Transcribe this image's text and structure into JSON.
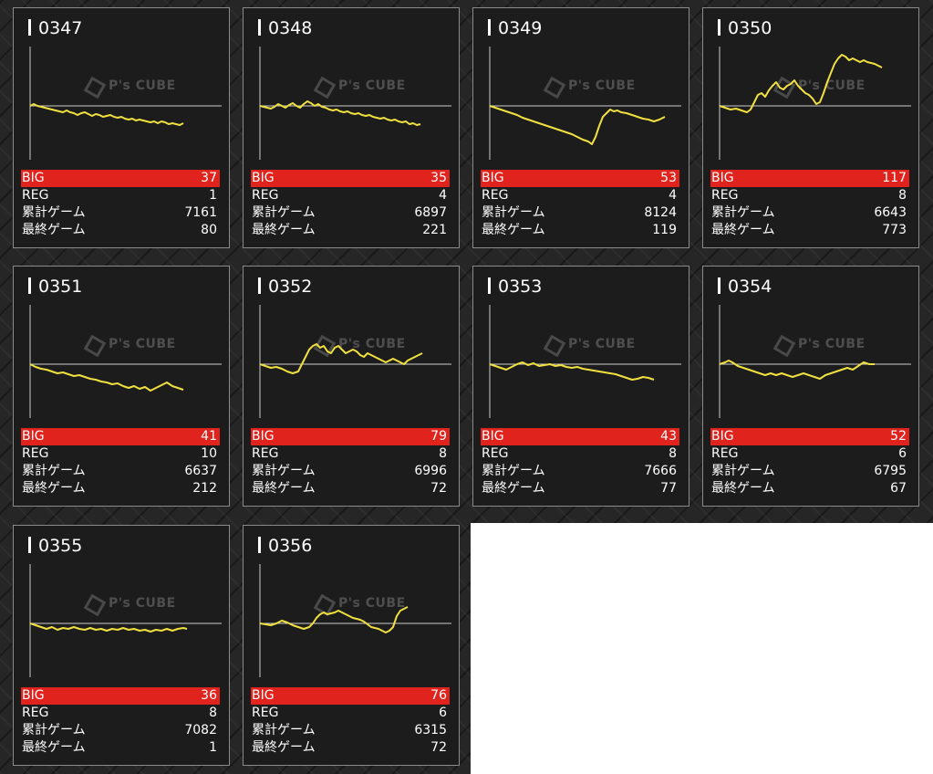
{
  "labels": {
    "big": "BIG",
    "reg": "REG",
    "total": "累計ゲーム",
    "last": "最終ゲーム"
  },
  "logo": {
    "text": "P's CUBE"
  },
  "colors": {
    "big_bar": "#e0231d",
    "line": "#f0e040",
    "card": "#1c1c1c"
  },
  "machines": [
    {
      "id": "0347",
      "big": "37",
      "reg": "1",
      "total": "7161",
      "last": "80",
      "points": [
        [
          0,
          0
        ],
        [
          4,
          -2
        ],
        [
          8,
          0
        ],
        [
          12,
          1
        ],
        [
          16,
          2
        ],
        [
          20,
          3
        ],
        [
          24,
          4
        ],
        [
          28,
          5
        ],
        [
          32,
          6
        ],
        [
          36,
          7
        ],
        [
          40,
          5
        ],
        [
          44,
          7
        ],
        [
          48,
          8
        ],
        [
          52,
          10
        ],
        [
          56,
          8
        ],
        [
          60,
          7
        ],
        [
          64,
          9
        ],
        [
          68,
          11
        ],
        [
          72,
          9
        ],
        [
          76,
          10
        ],
        [
          80,
          12
        ],
        [
          84,
          11
        ],
        [
          88,
          10
        ],
        [
          92,
          12
        ],
        [
          96,
          13
        ],
        [
          100,
          12
        ],
        [
          104,
          14
        ],
        [
          108,
          15
        ],
        [
          112,
          14
        ],
        [
          116,
          16
        ],
        [
          120,
          15
        ],
        [
          124,
          16
        ],
        [
          128,
          17
        ],
        [
          132,
          18
        ],
        [
          136,
          17
        ],
        [
          140,
          19
        ],
        [
          144,
          17
        ],
        [
          148,
          18
        ],
        [
          152,
          20
        ],
        [
          156,
          19
        ],
        [
          160,
          20
        ],
        [
          164,
          21
        ],
        [
          168,
          19
        ]
      ]
    },
    {
      "id": "0348",
      "big": "35",
      "reg": "4",
      "total": "6897",
      "last": "221",
      "points": [
        [
          0,
          0
        ],
        [
          4,
          1
        ],
        [
          8,
          2
        ],
        [
          12,
          3
        ],
        [
          16,
          1
        ],
        [
          20,
          -2
        ],
        [
          24,
          0
        ],
        [
          28,
          2
        ],
        [
          32,
          -1
        ],
        [
          36,
          -3
        ],
        [
          40,
          0
        ],
        [
          44,
          2
        ],
        [
          48,
          -2
        ],
        [
          52,
          -5
        ],
        [
          56,
          -3
        ],
        [
          60,
          0
        ],
        [
          64,
          -2
        ],
        [
          68,
          1
        ],
        [
          72,
          2
        ],
        [
          76,
          4
        ],
        [
          80,
          5
        ],
        [
          84,
          4
        ],
        [
          88,
          6
        ],
        [
          92,
          7
        ],
        [
          96,
          6
        ],
        [
          100,
          8
        ],
        [
          104,
          9
        ],
        [
          108,
          8
        ],
        [
          112,
          10
        ],
        [
          116,
          11
        ],
        [
          120,
          10
        ],
        [
          124,
          12
        ],
        [
          128,
          13
        ],
        [
          132,
          14
        ],
        [
          136,
          13
        ],
        [
          140,
          15
        ],
        [
          144,
          16
        ],
        [
          148,
          15
        ],
        [
          152,
          17
        ],
        [
          156,
          18
        ],
        [
          160,
          17
        ],
        [
          164,
          20
        ],
        [
          168,
          19
        ],
        [
          172,
          21
        ],
        [
          176,
          20
        ]
      ]
    },
    {
      "id": "0349",
      "big": "53",
      "reg": "4",
      "total": "8124",
      "last": "119",
      "points": [
        [
          0,
          0
        ],
        [
          6,
          2
        ],
        [
          12,
          4
        ],
        [
          18,
          6
        ],
        [
          24,
          8
        ],
        [
          30,
          10
        ],
        [
          36,
          13
        ],
        [
          42,
          15
        ],
        [
          48,
          17
        ],
        [
          54,
          19
        ],
        [
          60,
          21
        ],
        [
          66,
          23
        ],
        [
          72,
          25
        ],
        [
          78,
          27
        ],
        [
          84,
          29
        ],
        [
          90,
          31
        ],
        [
          96,
          34
        ],
        [
          102,
          37
        ],
        [
          108,
          39
        ],
        [
          112,
          42
        ],
        [
          116,
          34
        ],
        [
          120,
          22
        ],
        [
          124,
          12
        ],
        [
          128,
          8
        ],
        [
          132,
          4
        ],
        [
          136,
          6
        ],
        [
          140,
          5
        ],
        [
          144,
          7
        ],
        [
          150,
          8
        ],
        [
          156,
          10
        ],
        [
          162,
          12
        ],
        [
          168,
          14
        ],
        [
          174,
          15
        ],
        [
          180,
          17
        ],
        [
          186,
          15
        ],
        [
          192,
          12
        ]
      ]
    },
    {
      "id": "0350",
      "big": "117",
      "reg": "8",
      "total": "6643",
      "last": "773",
      "points": [
        [
          0,
          0
        ],
        [
          6,
          2
        ],
        [
          12,
          4
        ],
        [
          18,
          3
        ],
        [
          24,
          5
        ],
        [
          30,
          7
        ],
        [
          34,
          4
        ],
        [
          38,
          -4
        ],
        [
          42,
          -12
        ],
        [
          46,
          -14
        ],
        [
          50,
          -10
        ],
        [
          54,
          -17
        ],
        [
          58,
          -22
        ],
        [
          62,
          -26
        ],
        [
          66,
          -20
        ],
        [
          70,
          -18
        ],
        [
          74,
          -22
        ],
        [
          78,
          -24
        ],
        [
          82,
          -28
        ],
        [
          86,
          -22
        ],
        [
          90,
          -18
        ],
        [
          94,
          -14
        ],
        [
          98,
          -12
        ],
        [
          102,
          -8
        ],
        [
          106,
          -2
        ],
        [
          110,
          -4
        ],
        [
          114,
          -14
        ],
        [
          118,
          -26
        ],
        [
          122,
          -36
        ],
        [
          126,
          -46
        ],
        [
          130,
          -52
        ],
        [
          134,
          -56
        ],
        [
          138,
          -54
        ],
        [
          142,
          -50
        ],
        [
          146,
          -52
        ],
        [
          150,
          -50
        ],
        [
          154,
          -48
        ],
        [
          158,
          -50
        ],
        [
          162,
          -48
        ],
        [
          166,
          -47
        ],
        [
          170,
          -46
        ],
        [
          174,
          -44
        ],
        [
          178,
          -42
        ]
      ]
    },
    {
      "id": "0351",
      "big": "41",
      "reg": "10",
      "total": "6637",
      "last": "212",
      "points": [
        [
          0,
          0
        ],
        [
          6,
          3
        ],
        [
          12,
          5
        ],
        [
          18,
          6
        ],
        [
          24,
          8
        ],
        [
          30,
          10
        ],
        [
          36,
          9
        ],
        [
          42,
          11
        ],
        [
          48,
          13
        ],
        [
          54,
          12
        ],
        [
          60,
          14
        ],
        [
          66,
          16
        ],
        [
          72,
          17
        ],
        [
          78,
          19
        ],
        [
          84,
          20
        ],
        [
          90,
          22
        ],
        [
          96,
          21
        ],
        [
          102,
          24
        ],
        [
          108,
          26
        ],
        [
          114,
          24
        ],
        [
          120,
          27
        ],
        [
          126,
          25
        ],
        [
          132,
          29
        ],
        [
          138,
          26
        ],
        [
          144,
          23
        ],
        [
          150,
          20
        ],
        [
          156,
          24
        ],
        [
          162,
          26
        ],
        [
          168,
          28
        ]
      ]
    },
    {
      "id": "0352",
      "big": "79",
      "reg": "8",
      "total": "6996",
      "last": "72",
      "points": [
        [
          0,
          0
        ],
        [
          6,
          2
        ],
        [
          12,
          4
        ],
        [
          18,
          3
        ],
        [
          24,
          5
        ],
        [
          30,
          8
        ],
        [
          36,
          10
        ],
        [
          42,
          8
        ],
        [
          46,
          0
        ],
        [
          50,
          -8
        ],
        [
          54,
          -16
        ],
        [
          58,
          -20
        ],
        [
          62,
          -22
        ],
        [
          66,
          -18
        ],
        [
          70,
          -20
        ],
        [
          74,
          -14
        ],
        [
          78,
          -12
        ],
        [
          82,
          -18
        ],
        [
          86,
          -20
        ],
        [
          90,
          -16
        ],
        [
          94,
          -12
        ],
        [
          98,
          -14
        ],
        [
          102,
          -16
        ],
        [
          106,
          -14
        ],
        [
          110,
          -10
        ],
        [
          114,
          -8
        ],
        [
          118,
          -12
        ],
        [
          122,
          -10
        ],
        [
          126,
          -8
        ],
        [
          130,
          -6
        ],
        [
          134,
          -4
        ],
        [
          138,
          -2
        ],
        [
          142,
          -4
        ],
        [
          146,
          -6
        ],
        [
          150,
          -4
        ],
        [
          154,
          -2
        ],
        [
          158,
          0
        ],
        [
          162,
          -4
        ],
        [
          166,
          -6
        ],
        [
          170,
          -8
        ],
        [
          174,
          -10
        ],
        [
          178,
          -12
        ]
      ]
    },
    {
      "id": "0353",
      "big": "43",
      "reg": "8",
      "total": "7666",
      "last": "77",
      "points": [
        [
          0,
          0
        ],
        [
          6,
          2
        ],
        [
          12,
          4
        ],
        [
          18,
          6
        ],
        [
          24,
          3
        ],
        [
          30,
          0
        ],
        [
          36,
          -2
        ],
        [
          42,
          1
        ],
        [
          48,
          -1
        ],
        [
          54,
          2
        ],
        [
          60,
          1
        ],
        [
          66,
          0
        ],
        [
          72,
          2
        ],
        [
          78,
          1
        ],
        [
          84,
          3
        ],
        [
          90,
          4
        ],
        [
          96,
          3
        ],
        [
          102,
          5
        ],
        [
          108,
          6
        ],
        [
          114,
          7
        ],
        [
          120,
          8
        ],
        [
          126,
          9
        ],
        [
          132,
          10
        ],
        [
          138,
          11
        ],
        [
          144,
          13
        ],
        [
          150,
          15
        ],
        [
          156,
          17
        ],
        [
          162,
          16
        ],
        [
          168,
          14
        ],
        [
          174,
          15
        ],
        [
          180,
          17
        ]
      ]
    },
    {
      "id": "0354",
      "big": "52",
      "reg": "6",
      "total": "6795",
      "last": "67",
      "points": [
        [
          0,
          0
        ],
        [
          6,
          -2
        ],
        [
          10,
          -4
        ],
        [
          14,
          -2
        ],
        [
          20,
          2
        ],
        [
          26,
          4
        ],
        [
          32,
          6
        ],
        [
          38,
          8
        ],
        [
          44,
          10
        ],
        [
          50,
          12
        ],
        [
          56,
          10
        ],
        [
          62,
          12
        ],
        [
          68,
          10
        ],
        [
          74,
          12
        ],
        [
          80,
          14
        ],
        [
          86,
          12
        ],
        [
          92,
          10
        ],
        [
          98,
          12
        ],
        [
          104,
          14
        ],
        [
          110,
          16
        ],
        [
          116,
          12
        ],
        [
          122,
          10
        ],
        [
          128,
          8
        ],
        [
          134,
          6
        ],
        [
          140,
          4
        ],
        [
          146,
          6
        ],
        [
          152,
          2
        ],
        [
          158,
          -2
        ],
        [
          164,
          0
        ],
        [
          170,
          0
        ]
      ]
    },
    {
      "id": "0355",
      "big": "36",
      "reg": "8",
      "total": "7082",
      "last": "1",
      "points": [
        [
          0,
          0
        ],
        [
          6,
          2
        ],
        [
          12,
          4
        ],
        [
          18,
          6
        ],
        [
          24,
          4
        ],
        [
          30,
          7
        ],
        [
          36,
          5
        ],
        [
          42,
          6
        ],
        [
          48,
          4
        ],
        [
          54,
          6
        ],
        [
          60,
          7
        ],
        [
          66,
          5
        ],
        [
          72,
          7
        ],
        [
          78,
          6
        ],
        [
          84,
          8
        ],
        [
          90,
          6
        ],
        [
          96,
          7
        ],
        [
          102,
          5
        ],
        [
          108,
          7
        ],
        [
          114,
          6
        ],
        [
          120,
          8
        ],
        [
          126,
          7
        ],
        [
          132,
          9
        ],
        [
          138,
          7
        ],
        [
          144,
          8
        ],
        [
          150,
          6
        ],
        [
          156,
          8
        ],
        [
          162,
          6
        ],
        [
          168,
          5
        ],
        [
          172,
          6
        ]
      ]
    },
    {
      "id": "0356",
      "big": "76",
      "reg": "6",
      "total": "6315",
      "last": "72",
      "points": [
        [
          0,
          0
        ],
        [
          6,
          1
        ],
        [
          12,
          2
        ],
        [
          18,
          0
        ],
        [
          24,
          -3
        ],
        [
          30,
          -1
        ],
        [
          36,
          2
        ],
        [
          42,
          4
        ],
        [
          48,
          6
        ],
        [
          54,
          4
        ],
        [
          58,
          0
        ],
        [
          62,
          -6
        ],
        [
          66,
          -10
        ],
        [
          70,
          -12
        ],
        [
          74,
          -10
        ],
        [
          78,
          -11
        ],
        [
          82,
          -12
        ],
        [
          86,
          -14
        ],
        [
          90,
          -12
        ],
        [
          94,
          -10
        ],
        [
          98,
          -8
        ],
        [
          102,
          -6
        ],
        [
          106,
          -5
        ],
        [
          110,
          -4
        ],
        [
          114,
          -2
        ],
        [
          118,
          1
        ],
        [
          122,
          4
        ],
        [
          126,
          5
        ],
        [
          130,
          6
        ],
        [
          134,
          8
        ],
        [
          138,
          10
        ],
        [
          142,
          8
        ],
        [
          146,
          4
        ],
        [
          150,
          -8
        ],
        [
          154,
          -14
        ],
        [
          158,
          -16
        ],
        [
          162,
          -18
        ]
      ]
    }
  ]
}
